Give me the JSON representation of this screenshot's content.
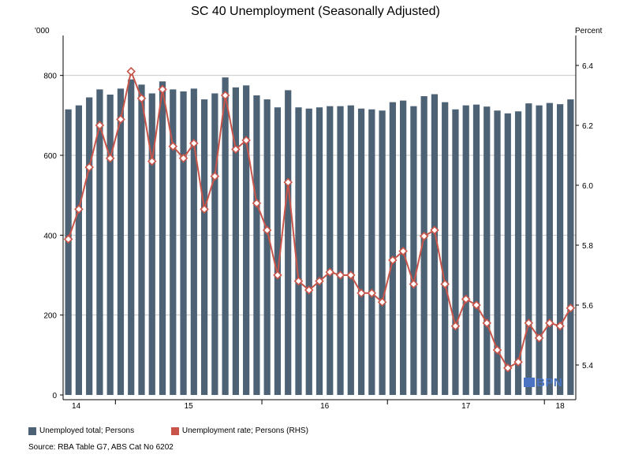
{
  "chart_data": {
    "type": "bar",
    "title": "SC 40 Unemployment (Seasonally Adjusted)",
    "left_axis_unit": "'000",
    "right_axis_unit": "Percent",
    "y_left": {
      "min": 0,
      "max": 900,
      "ticks": [
        0,
        200,
        400,
        600,
        800
      ]
    },
    "y_right": {
      "min": 5.3,
      "max": 6.5,
      "ticks": [
        5.4,
        5.6,
        5.8,
        6.0,
        6.2,
        6.4
      ]
    },
    "x_year_labels": [
      "14",
      "15",
      "16",
      "17",
      "18"
    ],
    "grid": true,
    "legend_position": "bottom",
    "series": [
      {
        "name": "Unemployed total; Persons",
        "axis": "left",
        "type": "bar",
        "color": "#4d6375",
        "values": [
          715,
          725,
          745,
          765,
          752,
          767,
          790,
          777,
          755,
          785,
          765,
          760,
          767,
          740,
          755,
          795,
          770,
          775,
          750,
          740,
          720,
          763,
          720,
          717,
          720,
          723,
          723,
          725,
          717,
          715,
          712,
          733,
          737,
          723,
          748,
          753,
          733,
          715,
          725,
          727,
          722,
          712,
          705,
          710,
          730,
          725,
          731,
          728,
          740
        ]
      },
      {
        "name": "Unemployment rate; Persons (RHS)",
        "axis": "right",
        "type": "line",
        "color": "#c9554a",
        "values": [
          5.82,
          5.92,
          6.06,
          6.2,
          6.09,
          6.22,
          6.38,
          6.29,
          6.08,
          6.32,
          6.13,
          6.09,
          6.14,
          5.92,
          6.03,
          6.3,
          6.12,
          6.15,
          5.94,
          5.85,
          5.7,
          6.01,
          5.68,
          5.65,
          5.68,
          5.71,
          5.7,
          5.7,
          5.64,
          5.64,
          5.61,
          5.75,
          5.78,
          5.67,
          5.83,
          5.85,
          5.67,
          5.53,
          5.62,
          5.6,
          5.54,
          5.45,
          5.39,
          5.41,
          5.54,
          5.49,
          5.54,
          5.53,
          5.59
        ]
      }
    ]
  },
  "legend": {
    "bar_label": "Unemployed total; Persons",
    "line_label": "Unemployment rate; Persons (RHS)"
  },
  "source": "Source: RBA Table G7, ABS Cat No 6202",
  "logo_text": "BPN"
}
